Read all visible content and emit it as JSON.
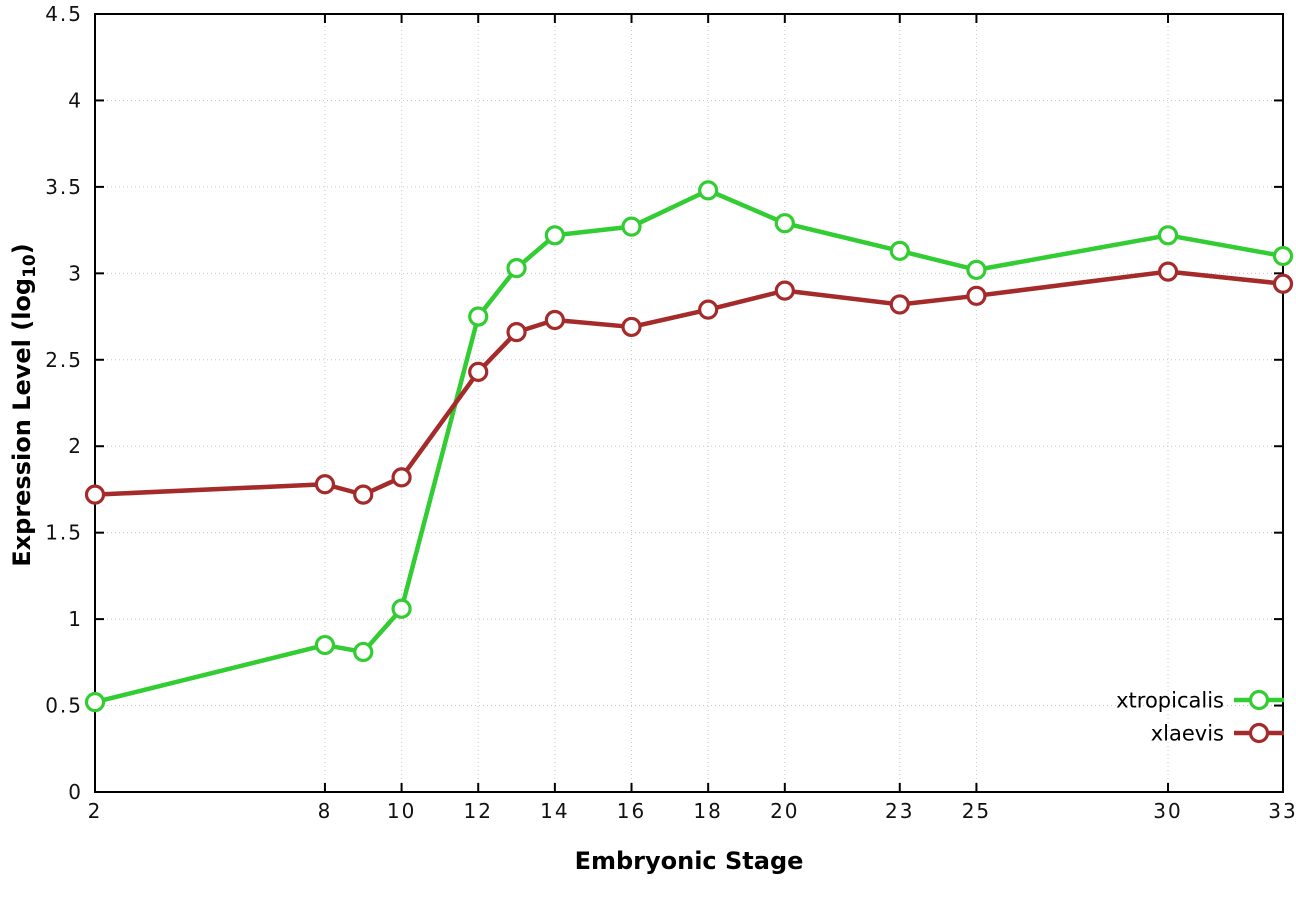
{
  "page": {
    "background": "#ffffff"
  },
  "chart_data": {
    "type": "line",
    "title": "",
    "xlabel": "Embryonic Stage",
    "ylabel": "Expression Level (log10)",
    "x": [
      2,
      8,
      9,
      10,
      12,
      13,
      14,
      16,
      18,
      20,
      23,
      25,
      30,
      33
    ],
    "series": [
      {
        "name": "xtropicalis",
        "color": "#32cd32",
        "values": [
          0.52,
          0.85,
          0.81,
          1.06,
          2.75,
          3.03,
          3.22,
          3.27,
          3.48,
          3.29,
          3.13,
          3.02,
          3.22,
          3.1
        ]
      },
      {
        "name": "xlaevis",
        "color": "#a52a2a",
        "values": [
          1.72,
          1.78,
          1.72,
          1.82,
          2.43,
          2.66,
          2.73,
          2.69,
          2.79,
          2.9,
          2.82,
          2.87,
          3.01,
          2.94
        ]
      }
    ],
    "xlim": [
      2,
      33
    ],
    "ylim": [
      0,
      4.5
    ],
    "xticks": [
      2,
      8,
      10,
      12,
      14,
      16,
      18,
      20,
      23,
      25,
      30,
      33
    ],
    "yticks": [
      0,
      0.5,
      1,
      1.5,
      2,
      2.5,
      3,
      3.5,
      4,
      4.5
    ],
    "grid": true,
    "grid_color": "#c8c8c8",
    "axis_color": "#000000",
    "legend_position": "inside-bottom-right",
    "legend_entries": [
      "xtropicalis",
      "xlaevis"
    ],
    "marker": "open-circle"
  }
}
